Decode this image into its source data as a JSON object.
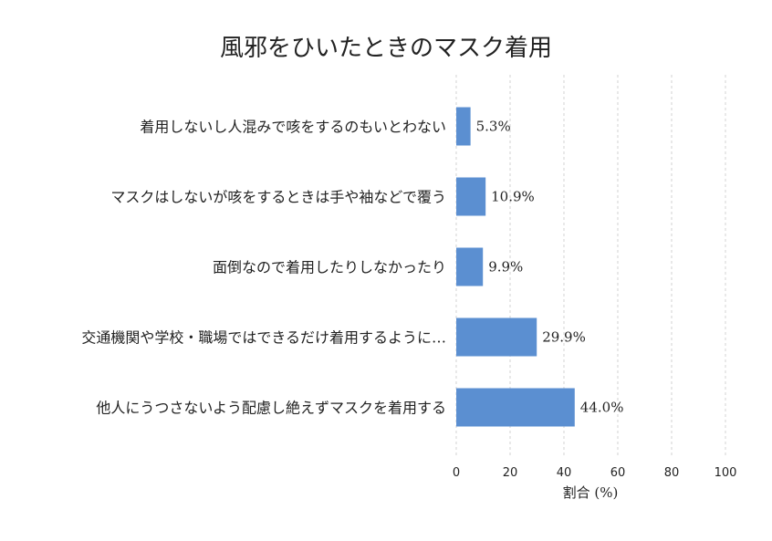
{
  "chart_data": {
    "type": "bar",
    "orientation": "horizontal",
    "title": "風邪をひいたときのマスク着用",
    "xlabel": "割合 (%)",
    "ylabel": "",
    "xlim": [
      0,
      100
    ],
    "x_ticks": [
      0,
      20,
      40,
      60,
      80,
      100
    ],
    "grid": "vertical-dashed",
    "categories": [
      "着用しないし人混みで咳をするのもいとわない",
      "マスクはしないが咳をするときは手や袖などで覆う",
      "面倒なので着用したりしなかったり",
      "交通機関や学校・職場ではできるだけ着用するように…",
      "他人にうつさないよう配慮し絶えずマスクを着用する"
    ],
    "values": [
      5.3,
      10.9,
      9.9,
      29.9,
      44.0
    ],
    "value_labels": [
      "5.3%",
      "10.9%",
      "9.9%",
      "29.9%",
      "44.0%"
    ],
    "bar_color": "#5b8fd1"
  }
}
